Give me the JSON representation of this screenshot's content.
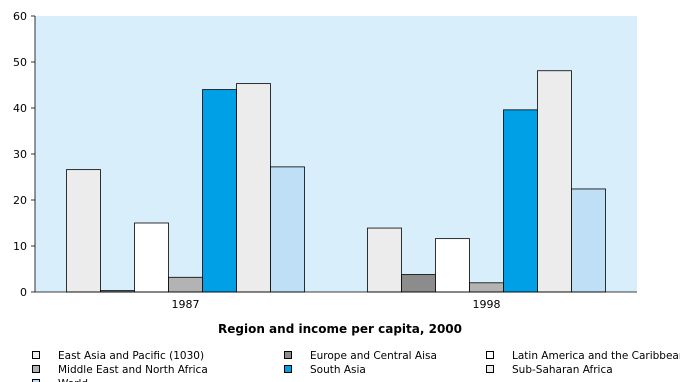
{
  "chart_data": {
    "type": "bar",
    "xlabel": "Region and income per capita, 2000",
    "ylabel": "",
    "ylim": [
      0,
      60
    ],
    "yticks": [
      0,
      10,
      20,
      30,
      40,
      50,
      60
    ],
    "categories": [
      "1987",
      "1998"
    ],
    "grid": false,
    "legend_position": "bottom",
    "series": [
      {
        "name": "East Asia and Pacific (1030)",
        "color": "#ececec",
        "values": [
          26.6,
          13.9
        ]
      },
      {
        "name": "Europe and Central Aisa",
        "color": "#8c8c8c",
        "values": [
          0.3,
          3.8
        ]
      },
      {
        "name": "Latin America and the Caribbean",
        "color": "#ffffff",
        "values": [
          15.0,
          11.6
        ]
      },
      {
        "name": "Middle East and North Africa",
        "color": "#b3b3b3",
        "values": [
          3.2,
          2.0
        ]
      },
      {
        "name": "South Asia",
        "color": "#00a0e6",
        "values": [
          44.0,
          39.6
        ]
      },
      {
        "name": "Sub-Saharan Africa",
        "color": "#ececec",
        "values": [
          45.3,
          48.1
        ]
      },
      {
        "name": "World",
        "color": "#bfdff7",
        "values": [
          27.2,
          22.4
        ]
      }
    ],
    "background": "#d8eefa"
  }
}
